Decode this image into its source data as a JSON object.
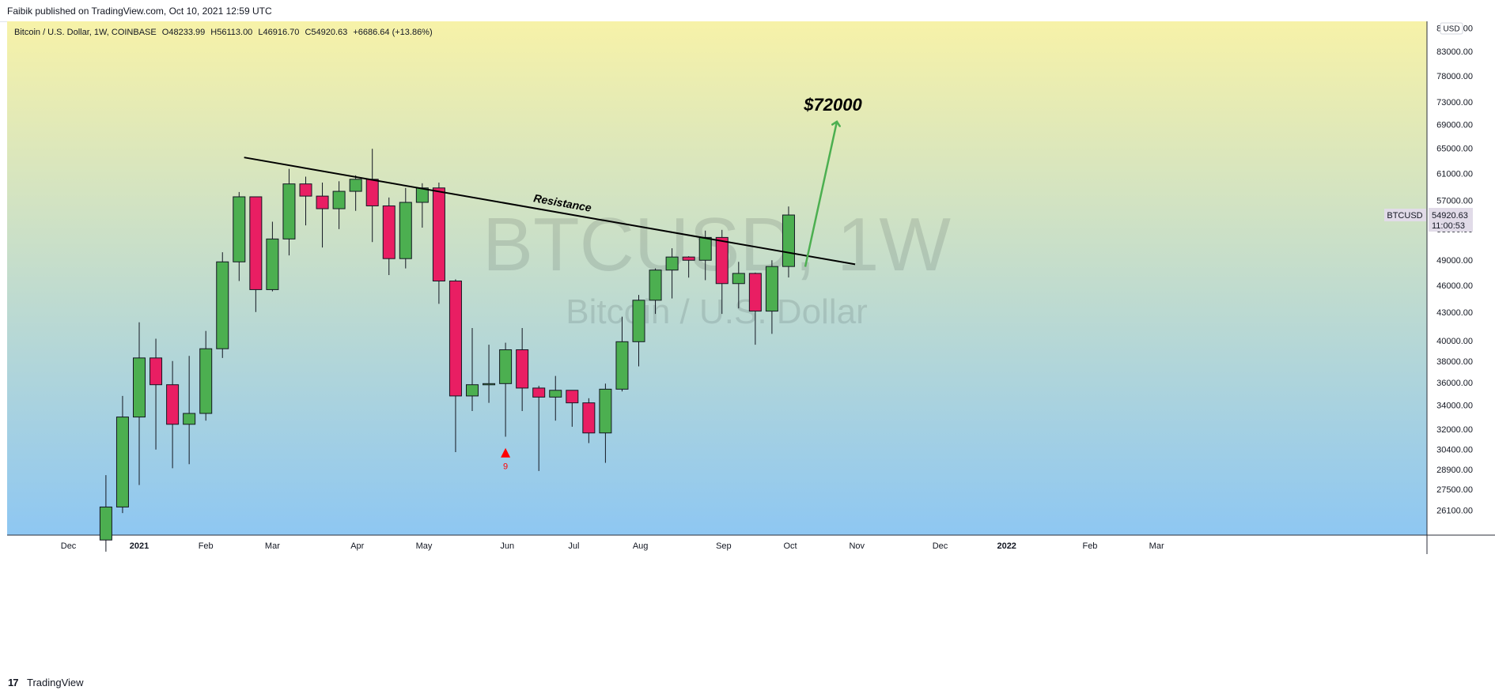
{
  "header": {
    "published_by": "Faibik published on TradingView.com, Oct 10, 2021 12:59 UTC"
  },
  "footer": {
    "logo": "17",
    "brand": "TradingView"
  },
  "legend": {
    "symbol": "Bitcoin / U.S. Dollar, 1W, COINBASE",
    "open": "O48233.99",
    "high": "H56113.00",
    "low": "L46916.70",
    "close": "C54920.63",
    "change": "+6686.64 (+13.86%)"
  },
  "colors": {
    "up": "#4caf50",
    "down": "#e91e63",
    "bg_top": "#f7f2a8",
    "bg_bottom": "#8ec7f2",
    "arrow": "#4caf50",
    "signal": "#ff0000"
  },
  "chart_data": {
    "type": "candlestick",
    "symbol": "BTCUSD",
    "interval": "1W",
    "exchange": "COINBASE",
    "currency": "USD",
    "y_scale": "log",
    "watermark": {
      "main": "BTCUSD, 1W",
      "sub": "Bitcoin / U.S. Dollar"
    },
    "yticks": [
      26100,
      27500,
      28900,
      30400,
      32000,
      34000,
      36000,
      38000,
      40000,
      43000,
      46000,
      49000,
      53000,
      57000,
      61000,
      65000,
      69000,
      73000,
      78000,
      83000,
      88000
    ],
    "ytick_labels": [
      "26100.00",
      "27500.00",
      "28900.00",
      "30400.00",
      "32000.00",
      "34000.00",
      "36000.00",
      "38000.00",
      "40000.00",
      "43000.00",
      "46000.00",
      "49000.00",
      "53000.00",
      "57000.00",
      "61000.00",
      "65000.00",
      "69000.00",
      "73000.00",
      "78000.00",
      "83000.00",
      "88000.00"
    ],
    "xticks": [
      {
        "label": "Dec",
        "week": -4.25
      },
      {
        "label": "2021",
        "week": 0.0
      },
      {
        "label": "Feb",
        "week": 4.0
      },
      {
        "label": "Mar",
        "week": 8.0
      },
      {
        "label": "Apr",
        "week": 13.1
      },
      {
        "label": "May",
        "week": 17.1
      },
      {
        "label": "Jun",
        "week": 22.1
      },
      {
        "label": "Jul",
        "week": 26.1
      },
      {
        "label": "Aug",
        "week": 30.1
      },
      {
        "label": "Sep",
        "week": 35.1
      },
      {
        "label": "Oct",
        "week": 39.1
      },
      {
        "label": "Nov",
        "week": 43.1
      },
      {
        "label": "Dec",
        "week": 48.1
      },
      {
        "label": "2022",
        "week": 52.1
      },
      {
        "label": "Feb",
        "week": 57.1
      },
      {
        "label": "Mar",
        "week": 61.1
      }
    ],
    "candles": [
      {
        "week": -2,
        "open": 24200,
        "high": 28500,
        "low": 23500,
        "close": 26300
      },
      {
        "week": -1,
        "open": 26300,
        "high": 34800,
        "low": 25900,
        "close": 33000
      },
      {
        "week": 0,
        "open": 33000,
        "high": 41900,
        "low": 27800,
        "close": 38300
      },
      {
        "week": 1,
        "open": 38300,
        "high": 40200,
        "low": 30400,
        "close": 35800
      },
      {
        "week": 2,
        "open": 35800,
        "high": 38000,
        "low": 29000,
        "close": 32400
      },
      {
        "week": 3,
        "open": 32400,
        "high": 38500,
        "low": 29300,
        "close": 33300
      },
      {
        "week": 4,
        "open": 33300,
        "high": 41000,
        "low": 32700,
        "close": 39200
      },
      {
        "week": 5,
        "open": 39200,
        "high": 50000,
        "low": 38300,
        "close": 48800
      },
      {
        "week": 6,
        "open": 48800,
        "high": 58200,
        "low": 46500,
        "close": 57500
      },
      {
        "week": 7,
        "open": 57500,
        "high": 57500,
        "low": 43000,
        "close": 45500
      },
      {
        "week": 8,
        "open": 45500,
        "high": 54000,
        "low": 45300,
        "close": 51700
      },
      {
        "week": 9,
        "open": 51700,
        "high": 61700,
        "low": 49600,
        "close": 59400
      },
      {
        "week": 10,
        "open": 59400,
        "high": 60500,
        "low": 53500,
        "close": 57600
      },
      {
        "week": 11,
        "open": 57600,
        "high": 59600,
        "low": 50600,
        "close": 55800
      },
      {
        "week": 12,
        "open": 55800,
        "high": 59800,
        "low": 53000,
        "close": 58300
      },
      {
        "week": 13,
        "open": 58300,
        "high": 60700,
        "low": 55500,
        "close": 60100
      },
      {
        "week": 14,
        "open": 60100,
        "high": 64900,
        "low": 51300,
        "close": 56200
      },
      {
        "week": 15,
        "open": 56200,
        "high": 57400,
        "low": 47200,
        "close": 49200
      },
      {
        "week": 16,
        "open": 49200,
        "high": 58800,
        "low": 48000,
        "close": 56700
      },
      {
        "week": 17,
        "open": 56700,
        "high": 59500,
        "low": 53200,
        "close": 58800
      },
      {
        "week": 18,
        "open": 58800,
        "high": 59600,
        "low": 43900,
        "close": 46500
      },
      {
        "week": 19,
        "open": 46500,
        "high": 46700,
        "low": 30200,
        "close": 34800
      },
      {
        "week": 20,
        "open": 34800,
        "high": 41300,
        "low": 33500,
        "close": 35800
      },
      {
        "week": 21,
        "open": 35800,
        "high": 39600,
        "low": 34200,
        "close": 35900
      },
      {
        "week": 22,
        "open": 35900,
        "high": 39800,
        "low": 31400,
        "close": 39100
      },
      {
        "week": 23,
        "open": 39100,
        "high": 41300,
        "low": 33500,
        "close": 35500
      },
      {
        "week": 24,
        "open": 35500,
        "high": 35700,
        "low": 28800,
        "close": 34700
      },
      {
        "week": 25,
        "open": 34700,
        "high": 36600,
        "low": 32700,
        "close": 35300
      },
      {
        "week": 26,
        "open": 35300,
        "high": 35300,
        "low": 32200,
        "close": 34200
      },
      {
        "week": 27,
        "open": 34200,
        "high": 34600,
        "low": 30900,
        "close": 31700
      },
      {
        "week": 28,
        "open": 31700,
        "high": 35900,
        "low": 29400,
        "close": 35400
      },
      {
        "week": 29,
        "open": 35400,
        "high": 42500,
        "low": 35200,
        "close": 39900
      },
      {
        "week": 30,
        "open": 39900,
        "high": 44900,
        "low": 37500,
        "close": 44300
      },
      {
        "week": 31,
        "open": 44300,
        "high": 48000,
        "low": 42800,
        "close": 47800
      },
      {
        "week": 32,
        "open": 47800,
        "high": 50500,
        "low": 44500,
        "close": 49400
      },
      {
        "week": 33,
        "open": 49400,
        "high": 49500,
        "low": 46900,
        "close": 49000
      },
      {
        "week": 34,
        "open": 49000,
        "high": 52800,
        "low": 46600,
        "close": 51900
      },
      {
        "week": 35,
        "open": 51900,
        "high": 52900,
        "low": 42800,
        "close": 46200
      },
      {
        "week": 36,
        "open": 46200,
        "high": 48800,
        "low": 43400,
        "close": 47400
      },
      {
        "week": 37,
        "open": 47400,
        "high": 47500,
        "low": 39600,
        "close": 43100
      },
      {
        "week": 38,
        "open": 43100,
        "high": 49000,
        "low": 40700,
        "close": 48233.99
      },
      {
        "week": 39,
        "open": 48233.99,
        "high": 56113.0,
        "low": 46916.7,
        "close": 54920.63
      }
    ],
    "last_price": {
      "symbol": "BTCUSD",
      "price": "54920.63",
      "countdown": "11:00:53"
    },
    "annotations": [
      {
        "type": "trendline",
        "label": "Resistance",
        "from": {
          "week": 6.3,
          "price": 63500
        },
        "to": {
          "week": 43.0,
          "price": 48500
        }
      },
      {
        "type": "arrow",
        "label": "$72000",
        "from": {
          "week": 40.0,
          "price": 48200
        },
        "to": {
          "week": 41.9,
          "price": 69500
        }
      },
      {
        "type": "signal",
        "label": "9",
        "week": 22,
        "price": 30100
      }
    ]
  }
}
